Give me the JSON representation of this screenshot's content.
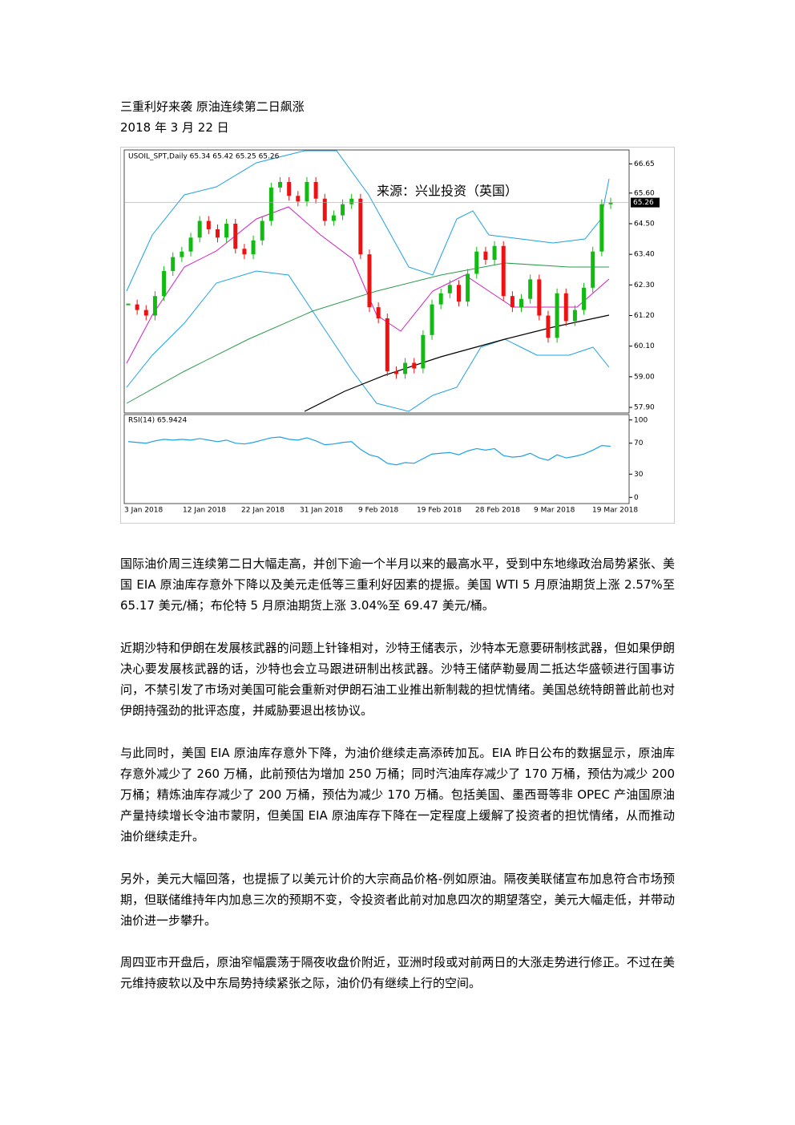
{
  "document": {
    "title": "三重利好来袭 原油连续第二日飙涨",
    "date": "2018 年 3 月 22 日",
    "chart": {
      "type": "candlestick",
      "header": "USOIL_SPT,Daily  65.34 65.42 65.25 65.26",
      "source": "来源：兴业投资（英国）",
      "last_price": "65.26",
      "ylim": [
        57.7,
        67.15
      ],
      "yticks": [
        {
          "value": 66.65,
          "label": "66.65"
        },
        {
          "value": 65.6,
          "label": "65.60"
        },
        {
          "value": 64.5,
          "label": "64.50"
        },
        {
          "value": 63.4,
          "label": "63.40"
        },
        {
          "value": 62.3,
          "label": "62.30"
        },
        {
          "value": 61.2,
          "label": "61.20"
        },
        {
          "value": 60.1,
          "label": "60.10"
        },
        {
          "value": 59,
          "label": "59.00"
        },
        {
          "value": 57.9,
          "label": "57.90"
        }
      ],
      "closes": [
        61.6,
        61.4,
        61.2,
        61.9,
        62.8,
        63.3,
        63.5,
        64.0,
        64.6,
        64.3,
        64.0,
        64.5,
        63.6,
        63.4,
        63.9,
        64.6,
        65.8,
        66.0,
        65.5,
        65.3,
        66.0,
        65.4,
        64.6,
        64.8,
        65.2,
        65.4,
        63.4,
        61.5,
        61.1,
        59.2,
        59.1,
        59.5,
        59.3,
        60.5,
        61.6,
        62.0,
        62.3,
        61.7,
        62.7,
        63.5,
        63.2,
        63.7,
        61.9,
        61.5,
        61.8,
        62.5,
        61.2,
        60.4,
        62.0,
        61.0,
        61.4,
        62.2,
        63.5,
        65.2,
        65.26
      ],
      "rsi_label": "RSI(14) 65.9424",
      "rsi_ylim": [
        -8,
        107
      ],
      "rsi_ticks": [
        100,
        70,
        30,
        0
      ],
      "rsi": [
        72,
        71,
        70,
        73,
        75,
        74,
        75,
        74,
        76,
        74,
        72,
        74,
        70,
        69,
        71,
        74,
        77,
        78,
        75,
        74,
        77,
        73,
        68,
        69,
        71,
        72,
        62,
        55,
        52,
        44,
        42,
        45,
        44,
        50,
        56,
        57,
        58,
        55,
        60,
        63,
        61,
        63,
        54,
        52,
        53,
        57,
        51,
        48,
        55,
        51,
        53,
        56,
        61,
        67,
        66
      ],
      "x_labels": [
        "3 Jan 2018",
        "12 Jan 2018",
        "22 Jan 2018",
        "31 Jan 2018",
        "9 Feb 2018",
        "19 Feb 2018",
        "28 Feb 2018",
        "9 Mar 2018",
        "19 Mar 2018"
      ]
    },
    "paragraphs": [
      "国际油价周三连续第二日大幅走高，并创下逾一个半月以来的最高水平，受到中东地缘政治局势紧张、美国 EIA 原油库存意外下降以及美元走低等三重利好因素的提振。美国 WTI 5 月原油期货上涨 2.57%至 65.17 美元/桶；布伦特 5 月原油期货上涨 3.04%至 69.47 美元/桶。",
      "近期沙特和伊朗在发展核武器的问题上针锋相对，沙特王储表示，沙特本无意要研制核武器，但如果伊朗决心要发展核武器的话，沙特也会立马跟进研制出核武器。沙特王储萨勒曼周二抵达华盛顿进行国事访问，不禁引发了市场对美国可能会重新对伊朗石油工业推出新制裁的担忧情绪。美国总统特朗普此前也对伊朗持强劲的批评态度，并威胁要退出核协议。",
      "与此同时，美国 EIA 原油库存意外下降，为油价继续走高添砖加瓦。EIA 昨日公布的数据显示，原油库存意外减少了 260 万桶，此前预估为增加 250 万桶；同时汽油库存减少了 170 万桶，预估为减少 200 万桶；精炼油库存减少了 200 万桶，预估为减少 170 万桶。包括美国、墨西哥等非 OPEC 产油国原油产量持续增长令油市蒙阴，但美国 EIA 原油库存下降在一定程度上缓解了投资者的担忧情绪，从而推动油价继续走升。",
      "另外，美元大幅回落，也提振了以美元计价的大宗商品价格-例如原油。隔夜美联储宣布加息符合市场预期，但联储维持年内加息三次的预期不变，令投资者此前对加息四次的期望落空，美元大幅走低，并带动油价进一步攀升。",
      "周四亚市开盘后，原油窄幅震荡于隔夜收盘价附近，亚洲时段或对前两日的大涨走势进行修正。不过在美元维持疲软以及中东局势持续紧张之际，油价仍有继续上行的空间。"
    ]
  }
}
